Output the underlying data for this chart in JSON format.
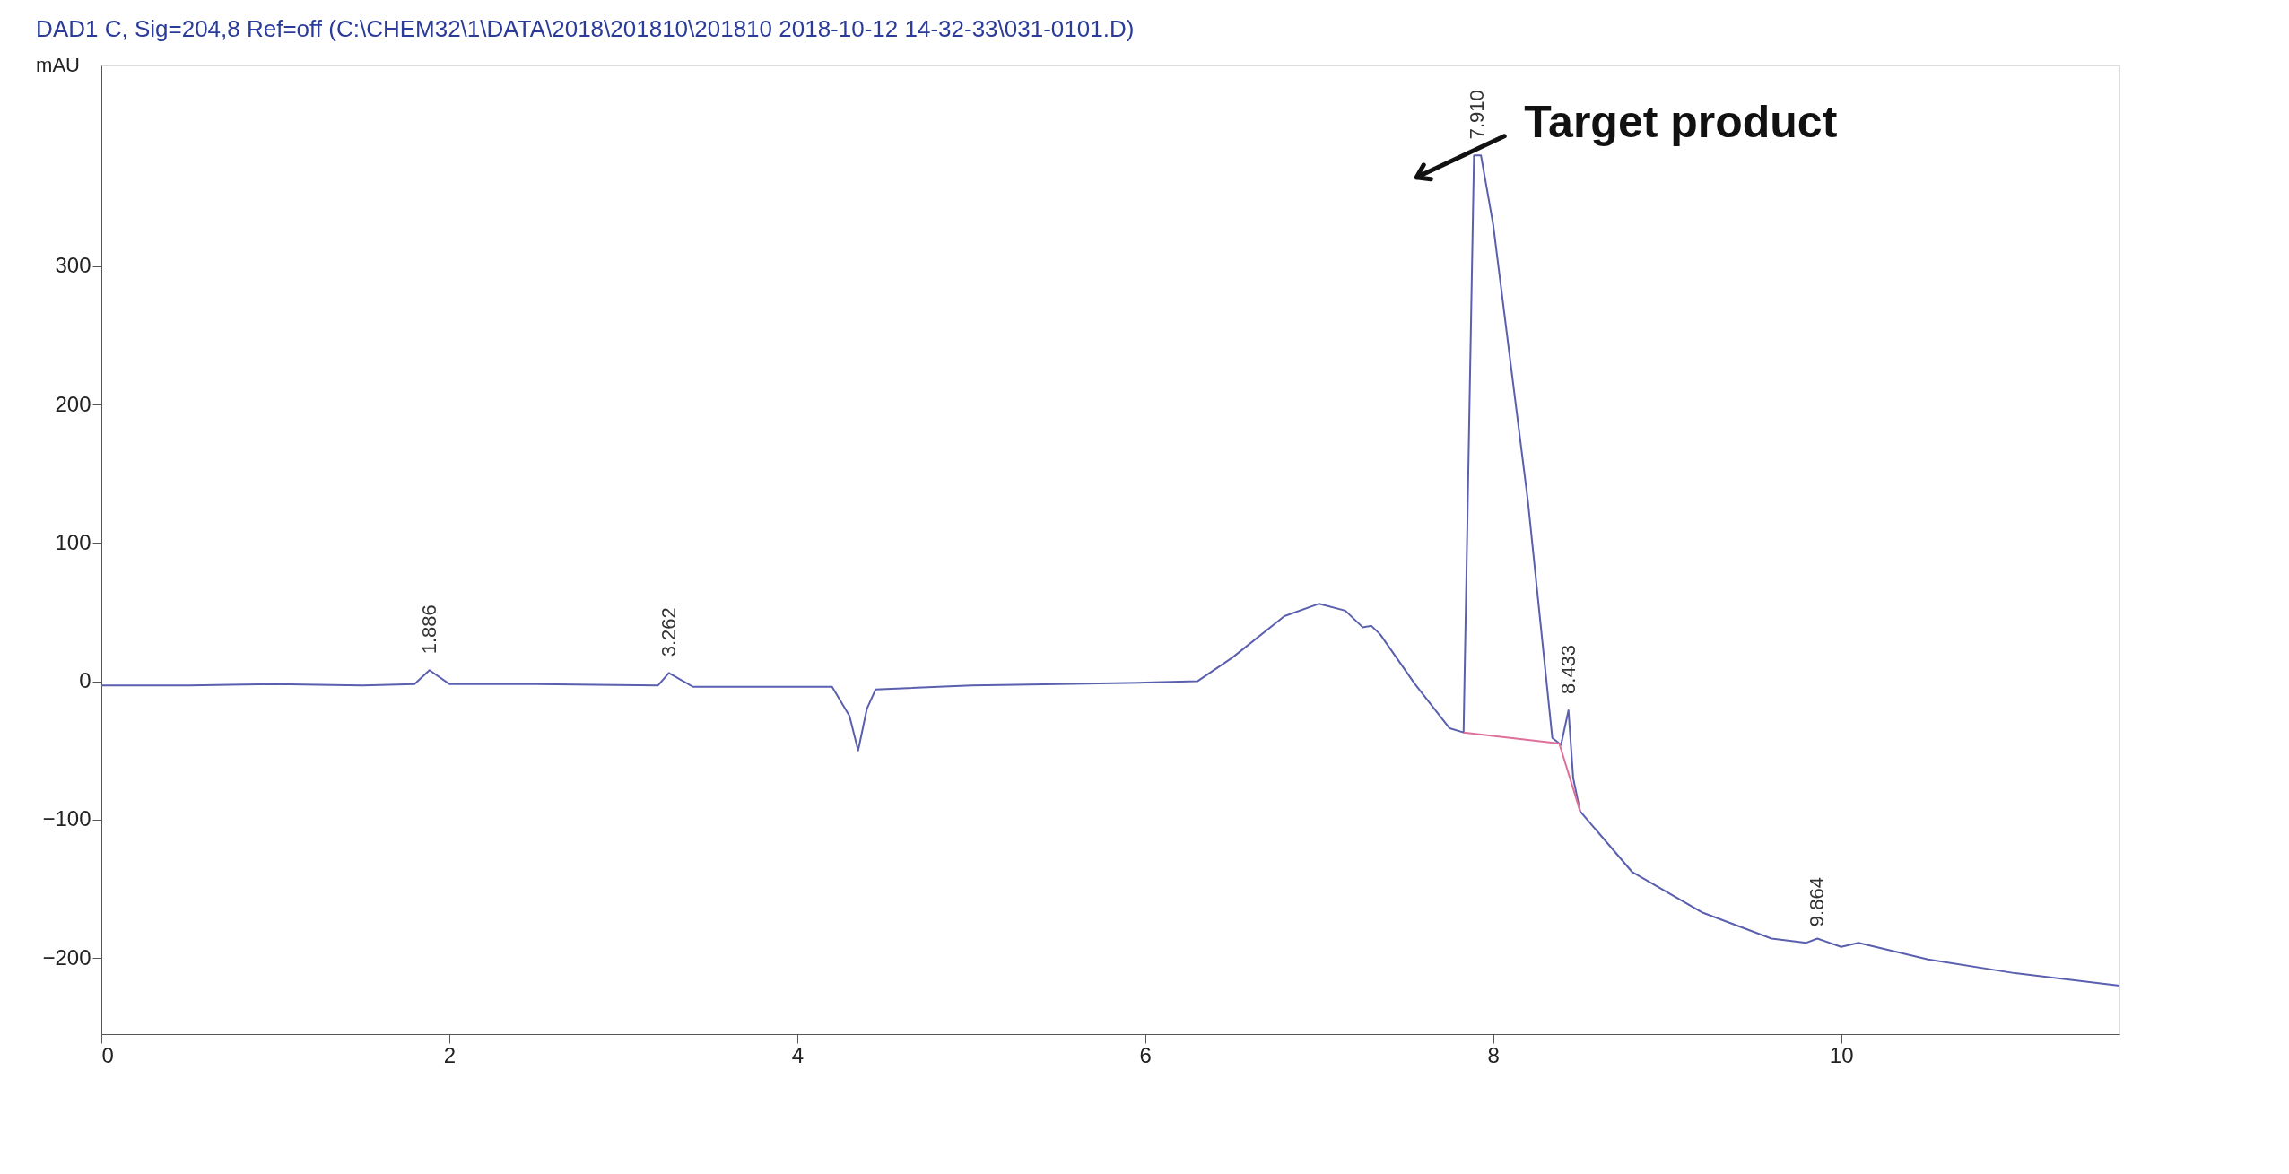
{
  "chart_data": {
    "type": "line",
    "title": "DAD1 C, Sig=204,8 Ref=off (C:\\CHEM32\\1\\DATA\\2018\\201810\\201810 2018-10-12 14-32-33\\031-0101.D)",
    "ylabel": "mAU",
    "xlim": [
      0,
      11.6
    ],
    "ylim": [
      -255,
      445
    ],
    "xticks": [
      0,
      2,
      4,
      6,
      8,
      10
    ],
    "yticks": [
      -200,
      -100,
      0,
      100,
      200,
      300
    ],
    "grid": false,
    "marker": "none",
    "line_style": "solid",
    "series": [
      {
        "color": "#5a5fae",
        "x": [
          0,
          0.5,
          1.0,
          1.5,
          1.8,
          1.886,
          2.0,
          2.5,
          3.2,
          3.262,
          3.4,
          4.0,
          4.2,
          4.3,
          4.35,
          4.4,
          4.45,
          5.0,
          5.5,
          6.0,
          6.3,
          6.5,
          6.8,
          7.0,
          7.15,
          7.25,
          7.3,
          7.35,
          7.55,
          7.75,
          7.83,
          7.89,
          7.93,
          8.0,
          8.2,
          8.34,
          8.39,
          8.433,
          8.46,
          8.5,
          8.8,
          9.2,
          9.6,
          9.8,
          9.864,
          10.0,
          10.1,
          10.5,
          11.0,
          11.6
        ],
        "values": [
          -3,
          -3,
          -2,
          -3,
          -2,
          8,
          -2,
          -2,
          -3,
          6,
          -4,
          -4,
          -4,
          -25,
          -50,
          -20,
          -6,
          -3,
          -2,
          -1,
          0,
          17,
          47,
          56,
          51,
          39,
          40,
          34,
          -2,
          -34,
          -37,
          380,
          380,
          330,
          130,
          -41,
          -46,
          -21,
          -70,
          -94,
          -138,
          -167,
          -186,
          -189,
          -186,
          -192,
          -189,
          -201,
          -211,
          -220
        ]
      },
      {
        "color": "#e0709a",
        "x": [
          7.83,
          8.38,
          8.5
        ],
        "values": [
          -37,
          -45,
          -94
        ]
      }
    ],
    "annotations": [
      {
        "text": "1.886",
        "x": 1.886,
        "y": 8
      },
      {
        "text": "3.262",
        "x": 3.262,
        "y": 6
      },
      {
        "text": "7.910",
        "x": 7.91,
        "y": 380
      },
      {
        "text": "8.433",
        "x": 8.433,
        "y": -21
      },
      {
        "text": "9.864",
        "x": 9.864,
        "y": -189
      },
      "Target product"
    ]
  }
}
